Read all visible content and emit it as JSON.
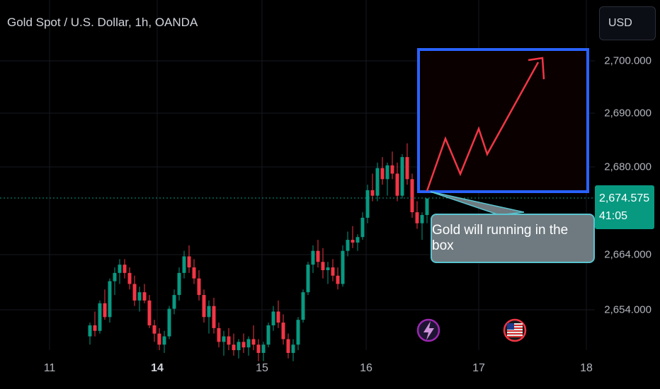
{
  "title": "Gold Spot / U.S. Dollar, 1h, OANDA",
  "currency_button": "USD",
  "current_price": "2,674.575",
  "countdown": "41:05",
  "annotation_text": "Gold will running in the box",
  "colors": {
    "up": "#089981",
    "down": "#f23645",
    "box": "#2962ff",
    "arrow": "#f23645",
    "callout_border": "#59c4cf",
    "price_line": "#089981"
  },
  "icons": [
    "lightning-event-icon",
    "us-flag-event-icon"
  ],
  "chart_data": {
    "type": "candlestick",
    "symbol": "Gold Spot / U.S. Dollar",
    "interval": "1h",
    "source": "OANDA",
    "y_ticks": [
      "2,700.000",
      "2,690.000",
      "2,680.000",
      "2,664.000",
      "2,654.000"
    ],
    "x_ticks": [
      {
        "label": "11",
        "bold": false
      },
      {
        "label": "14",
        "bold": true
      },
      {
        "label": "15",
        "bold": false
      },
      {
        "label": "16",
        "bold": false
      },
      {
        "label": "17",
        "bold": false
      },
      {
        "label": "18",
        "bold": false
      }
    ],
    "current_price": 2674.575,
    "candles_approx": [
      [
        2649.5,
        2652.0,
        2648.0,
        2651.5
      ],
      [
        2651.5,
        2654.0,
        2649.5,
        2650.5
      ],
      [
        2650.5,
        2656.0,
        2650.0,
        2655.5
      ],
      [
        2655.5,
        2658.0,
        2652.5,
        2653.0
      ],
      [
        2653.0,
        2660.0,
        2652.0,
        2659.5
      ],
      [
        2659.5,
        2662.0,
        2657.0,
        2661.0
      ],
      [
        2661.0,
        2663.5,
        2659.0,
        2662.5
      ],
      [
        2662.5,
        2663.5,
        2660.0,
        2661.0
      ],
      [
        2661.0,
        2662.0,
        2658.0,
        2659.0
      ],
      [
        2659.0,
        2660.5,
        2655.0,
        2656.0
      ],
      [
        2656.0,
        2658.5,
        2654.0,
        2657.5
      ],
      [
        2657.5,
        2659.0,
        2655.5,
        2656.0
      ],
      [
        2656.0,
        2657.0,
        2651.0,
        2651.5
      ],
      [
        2651.5,
        2652.5,
        2648.5,
        2650.0
      ],
      [
        2650.0,
        2651.0,
        2647.0,
        2648.0
      ],
      [
        2648.0,
        2650.5,
        2646.5,
        2649.5
      ],
      [
        2649.5,
        2655.0,
        2649.0,
        2654.5
      ],
      [
        2654.5,
        2658.0,
        2653.5,
        2657.0
      ],
      [
        2657.0,
        2662.0,
        2656.0,
        2661.0
      ],
      [
        2661.0,
        2665.0,
        2660.0,
        2664.0
      ],
      [
        2664.0,
        2666.0,
        2661.0,
        2662.0
      ],
      [
        2662.0,
        2663.5,
        2659.0,
        2660.0
      ],
      [
        2660.0,
        2661.5,
        2656.0,
        2657.0
      ],
      [
        2657.0,
        2658.0,
        2652.0,
        2653.0
      ],
      [
        2653.0,
        2656.0,
        2650.0,
        2655.0
      ],
      [
        2655.0,
        2656.5,
        2650.0,
        2651.0
      ],
      [
        2651.0,
        2652.0,
        2647.5,
        2648.5
      ],
      [
        2648.5,
        2650.5,
        2646.0,
        2649.5
      ],
      [
        2649.5,
        2651.0,
        2647.0,
        2648.0
      ],
      [
        2648.0,
        2650.0,
        2646.0,
        2647.0
      ],
      [
        2647.0,
        2649.0,
        2645.5,
        2648.5
      ],
      [
        2648.5,
        2650.0,
        2646.5,
        2647.5
      ],
      [
        2647.5,
        2649.5,
        2646.0,
        2649.0
      ],
      [
        2649.0,
        2651.5,
        2647.0,
        2648.0
      ],
      [
        2648.0,
        2649.0,
        2645.0,
        2646.5
      ],
      [
        2646.5,
        2648.5,
        2645.0,
        2648.0
      ],
      [
        2648.0,
        2652.0,
        2647.5,
        2651.5
      ],
      [
        2651.5,
        2655.0,
        2650.5,
        2654.0
      ],
      [
        2654.0,
        2656.0,
        2651.0,
        2652.0
      ],
      [
        2652.0,
        2653.5,
        2648.0,
        2649.0
      ],
      [
        2649.0,
        2650.0,
        2645.5,
        2646.5
      ],
      [
        2646.5,
        2649.0,
        2645.0,
        2648.0
      ],
      [
        2648.0,
        2653.0,
        2647.0,
        2652.5
      ],
      [
        2652.5,
        2658.0,
        2652.0,
        2657.5
      ],
      [
        2657.5,
        2663.0,
        2657.0,
        2662.5
      ],
      [
        2662.5,
        2666.0,
        2661.0,
        2665.0
      ],
      [
        2665.0,
        2667.0,
        2662.0,
        2663.0
      ],
      [
        2663.0,
        2665.5,
        2660.0,
        2661.5
      ],
      [
        2661.5,
        2663.0,
        2659.0,
        2662.0
      ],
      [
        2662.0,
        2663.5,
        2659.5,
        2660.5
      ],
      [
        2660.5,
        2662.0,
        2658.0,
        2659.0
      ],
      [
        2659.0,
        2666.0,
        2658.5,
        2665.0
      ],
      [
        2665.0,
        2668.5,
        2664.0,
        2667.0
      ],
      [
        2667.0,
        2669.5,
        2665.5,
        2666.5
      ],
      [
        2666.5,
        2668.0,
        2665.0,
        2667.5
      ],
      [
        2667.5,
        2672.0,
        2667.0,
        2671.0
      ],
      [
        2671.0,
        2677.0,
        2670.0,
        2676.0
      ],
      [
        2676.0,
        2679.0,
        2674.0,
        2675.0
      ],
      [
        2675.0,
        2681.0,
        2674.0,
        2680.0
      ],
      [
        2680.0,
        2682.0,
        2677.0,
        2678.0
      ],
      [
        2678.0,
        2681.0,
        2675.0,
        2680.5
      ],
      [
        2680.5,
        2683.0,
        2678.0,
        2679.0
      ],
      [
        2679.0,
        2681.0,
        2674.0,
        2675.0
      ],
      [
        2675.0,
        2682.5,
        2674.5,
        2682.0
      ],
      [
        2682.0,
        2684.5,
        2677.0,
        2678.0
      ],
      [
        2678.0,
        2679.0,
        2671.0,
        2672.0
      ],
      [
        2672.0,
        2674.0,
        2669.0,
        2670.0
      ],
      [
        2670.0,
        2672.0,
        2667.0,
        2671.5
      ],
      [
        2671.5,
        2673.0,
        2670.0,
        2674.5
      ]
    ]
  }
}
